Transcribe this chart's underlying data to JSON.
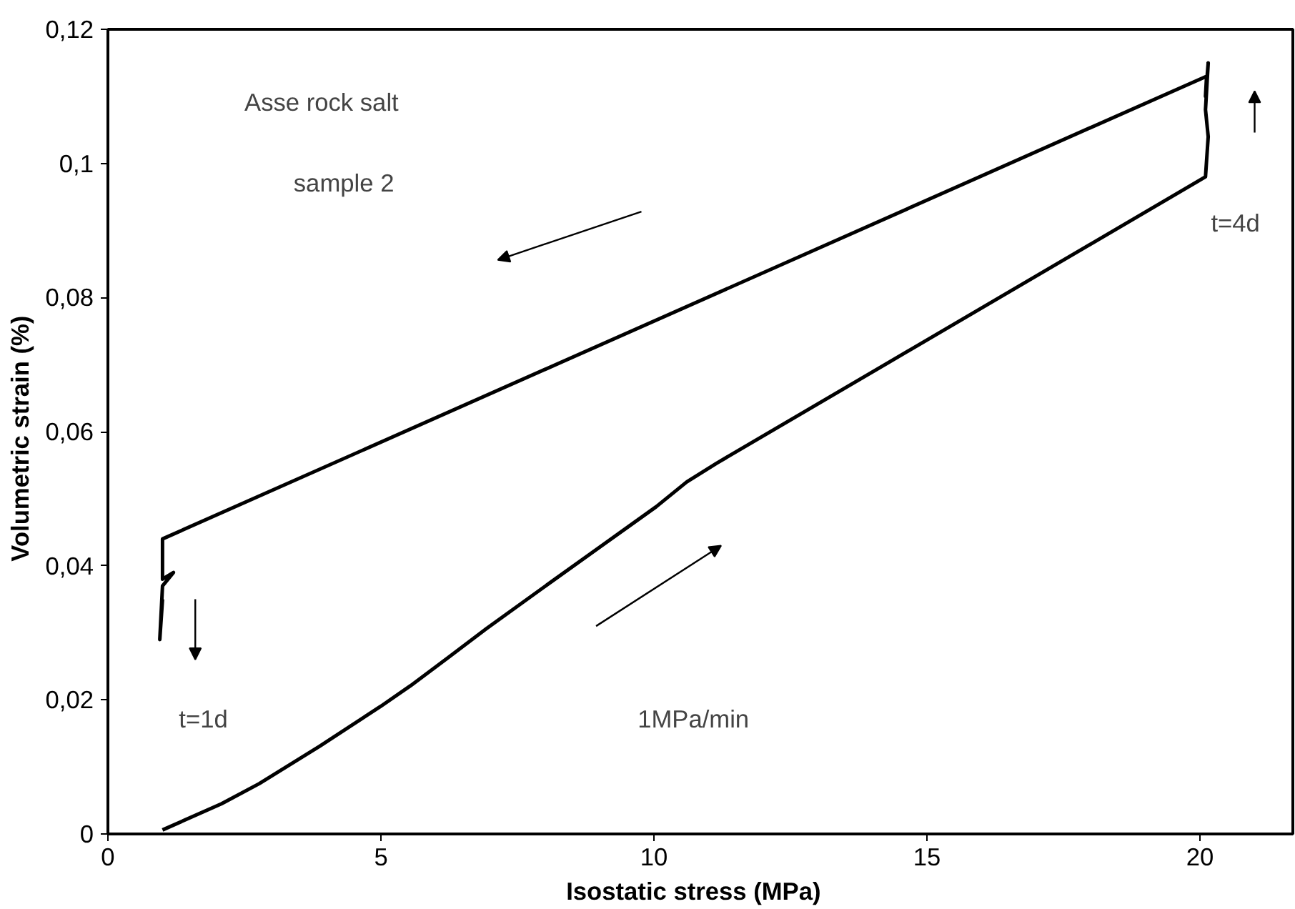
{
  "chart_data": {
    "type": "line",
    "xlabel": "Isostatic stress   (MPa)",
    "ylabel": "Volumetric strain   (%)",
    "annotations": [
      "Asse rock salt",
      "sample 2",
      "t=4d",
      "t=1d",
      "1MPa/min"
    ],
    "xlim": [
      0,
      21.7
    ],
    "ylim": [
      0,
      0.12
    ],
    "xticks": [
      0,
      5,
      10,
      15,
      20
    ],
    "yticks": [
      0,
      {
        "value": 0.02,
        "label": "0,02"
      },
      {
        "value": 0.04,
        "label": "0,04"
      },
      {
        "value": 0.06,
        "label": "0,06"
      },
      {
        "value": 0.08,
        "label": "0,08"
      },
      {
        "value": 0.1,
        "label": "0,1"
      },
      {
        "value": 0.12,
        "label": "0,12"
      }
    ],
    "grid": false,
    "marker": "none",
    "line_style": "solid",
    "series": [
      {
        "color": "#000000",
        "x": [
          1.0,
          2.08,
          2.77,
          3.88,
          4.99,
          5.54,
          6.23,
          6.93,
          8.17,
          9.56,
          10.04,
          10.6,
          11.15,
          20.1,
          20.15,
          20.1,
          20.15,
          20.1,
          20.12,
          1.0,
          1.0,
          1.2,
          1.0,
          0.95,
          1.0
        ],
        "values": [
          0.0006,
          0.0045,
          0.0075,
          0.0131,
          0.019,
          0.0221,
          0.0263,
          0.0306,
          0.0379,
          0.046,
          0.0488,
          0.0525,
          0.0553,
          0.098,
          0.104,
          0.108,
          0.115,
          0.11,
          0.113,
          0.044,
          0.038,
          0.039,
          0.037,
          0.029,
          0.035
        ]
      }
    ]
  }
}
